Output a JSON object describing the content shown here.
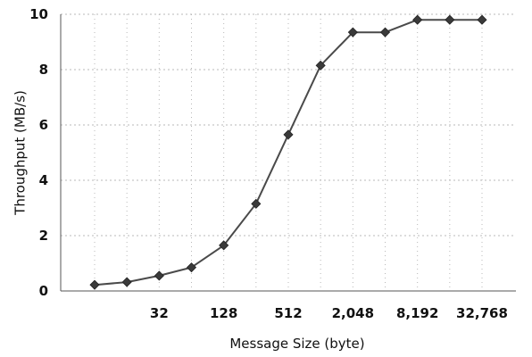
{
  "colors": {
    "line": "#4a4a4a",
    "marker": "#3a3a3a",
    "grid": "#b8b8b8",
    "axis": "#555555",
    "text": "#111111"
  },
  "chart_data": {
    "type": "line",
    "title": "",
    "xlabel": "Message Size (byte)",
    "ylabel": "Throughput (MB/s)",
    "x_scale": "log2",
    "x_tick_values": [
      32,
      128,
      512,
      2048,
      8192,
      32768
    ],
    "x_tick_labels": [
      "32",
      "128",
      "512",
      "2,048",
      "8,192",
      "32,768"
    ],
    "y_ticks": [
      0,
      2,
      4,
      6,
      8,
      10
    ],
    "ylim": [
      0,
      10
    ],
    "grid": true,
    "legend": "none",
    "series": [
      {
        "x": [
          8,
          16,
          32,
          64,
          128,
          256,
          512,
          1024,
          2048,
          4096,
          8192,
          16384,
          32768
        ],
        "y": [
          0.22,
          0.32,
          0.55,
          0.85,
          1.65,
          3.15,
          5.65,
          8.15,
          9.35,
          9.35,
          9.8,
          9.8,
          9.8
        ]
      }
    ]
  }
}
